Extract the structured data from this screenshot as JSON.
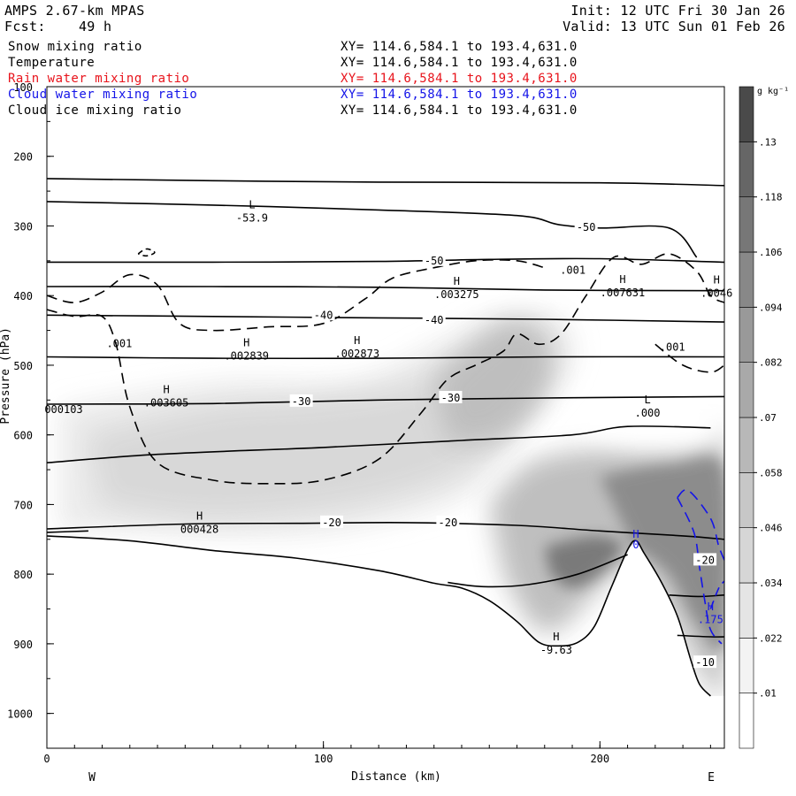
{
  "header": {
    "model": "AMPS 2.67-km MPAS",
    "init": "Init: 12 UTC Fri 30 Jan 26",
    "forecast": "Fcst:    49 h",
    "valid": "Valid: 13 UTC Sun 01 Feb 26"
  },
  "legend": [
    {
      "name": "Snow mixing ratio",
      "xy": "XY= 114.6,584.1 to 193.4,631.0",
      "color": "#000000"
    },
    {
      "name": "Temperature",
      "xy": "XY= 114.6,584.1 to 193.4,631.0",
      "color": "#000000"
    },
    {
      "name": "Rain water mixing ratio",
      "xy": "XY= 114.6,584.1 to 193.4,631.0",
      "color": "#e8141c"
    },
    {
      "name": "Cloud water mixing ratio",
      "xy": "XY= 114.6,584.1 to 193.4,631.0",
      "color": "#1414e8"
    },
    {
      "name": "Cloud ice mixing ratio",
      "xy": "XY= 114.6,584.1 to 193.4,631.0",
      "color": "#000000"
    }
  ],
  "chart_data": {
    "type": "heatmap",
    "xlabel": "Distance (km)",
    "ylabel": "Pressure (hPa)",
    "xlim": [
      0,
      245
    ],
    "ylim": [
      1050,
      100
    ],
    "x_ticks": [
      "0",
      "100",
      "200"
    ],
    "y_ticks": [
      "100",
      "200",
      "300",
      "400",
      "500",
      "600",
      "700",
      "800",
      "900",
      "1000"
    ],
    "x_end_labels": {
      "left": "W",
      "right": "E"
    },
    "colorbar": {
      "unit": "g kg⁻¹",
      "levels": [
        ".01",
        ".022",
        ".034",
        ".046",
        ".058",
        ".07",
        ".082",
        ".094",
        ".106",
        ".118",
        ".13"
      ],
      "colors": [
        "#ffffff",
        "#f3f3f3",
        "#e5e5e5",
        "#d6d6d6",
        "#c7c7c7",
        "#b8b8b8",
        "#a9a9a9",
        "#999999",
        "#888888",
        "#777777",
        "#666666",
        "#4a4a4a"
      ]
    },
    "temperature_labels": [
      {
        "text": "-50",
        "x": 195,
        "p": 302
      },
      {
        "text": "-50",
        "x": 140,
        "p": 350
      },
      {
        "text": "-40",
        "x": 100,
        "p": 428
      },
      {
        "text": "-40",
        "x": 140,
        "p": 435
      },
      {
        "text": "-30",
        "x": 92,
        "p": 552
      },
      {
        "text": "-30",
        "x": 146,
        "p": 547
      },
      {
        "text": "-20",
        "x": 103,
        "p": 726
      },
      {
        "text": "-20",
        "x": 145,
        "p": 726
      },
      {
        "text": "-20",
        "x": 238,
        "p": 780
      },
      {
        "text": "-10",
        "x": 238,
        "p": 927
      }
    ],
    "extrema_labels": [
      {
        "mark": "L",
        "value": "-53.9",
        "x": 71,
        "p": 290
      },
      {
        "mark": "H",
        "value": ".003275",
        "x": 145,
        "p": 400
      },
      {
        "mark": "H",
        "value": ".007631",
        "x": 205,
        "p": 397
      },
      {
        "mark": "H",
        "value": ".0046",
        "x": 239,
        "p": 398
      },
      {
        "mark": "",
        "value": ".001",
        "x": 187,
        "p": 365
      },
      {
        "mark": "",
        "value": ".001",
        "x": 23,
        "p": 470
      },
      {
        "mark": "",
        "value": ".001",
        "x": 223,
        "p": 475
      },
      {
        "mark": "H",
        "value": ".002839",
        "x": 69,
        "p": 488
      },
      {
        "mark": "H",
        "value": ".002873",
        "x": 109,
        "p": 485
      },
      {
        "mark": "H",
        "value": ".003605",
        "x": 40,
        "p": 555
      },
      {
        "mark": "",
        "value": "000103",
        "x": 0,
        "p": 565
      },
      {
        "mark": "L",
        "value": ".000",
        "x": 214,
        "p": 570
      },
      {
        "mark": "H",
        "value": "000428",
        "x": 52,
        "p": 737
      },
      {
        "mark": "H",
        "value": "-9.63",
        "x": 181,
        "p": 910
      }
    ],
    "blue_labels": [
      {
        "text": "H",
        "x": 213,
        "p": 748
      },
      {
        "text": "0",
        "x": 213,
        "p": 763
      },
      {
        "text": "H",
        "x": 240,
        "p": 852
      },
      {
        "text": ".175",
        "x": 240,
        "p": 870
      }
    ]
  }
}
